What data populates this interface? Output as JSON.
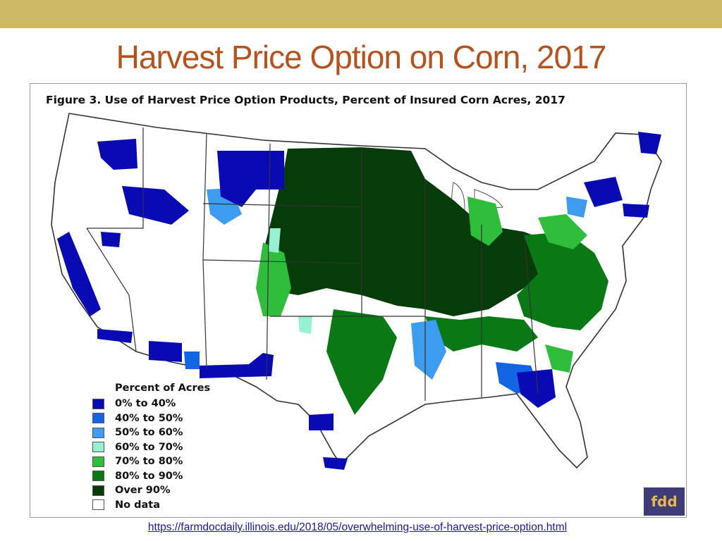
{
  "slide": {
    "title": "Harvest Price Option on Corn, 2017",
    "source_url": "https://farmdocdaily.illinois.edu/2018/05/overwhelming-use-of-harvest-price-option.html"
  },
  "figure": {
    "caption": "Figure 3. Use of Harvest Price Option Products, Percent of Insured Corn Acres, 2017",
    "logo_text": "fdd"
  },
  "legend": {
    "title": "Percent of Acres",
    "items": [
      {
        "label": "0% to 40%",
        "color": "#0a0ab4"
      },
      {
        "label": "40% to 50%",
        "color": "#1464e6"
      },
      {
        "label": "50% to 60%",
        "color": "#3c9cf0"
      },
      {
        "label": "60% to 70%",
        "color": "#96f0d2"
      },
      {
        "label": "70% to 80%",
        "color": "#2ebe3c"
      },
      {
        "label": "80% to 90%",
        "color": "#0a7814"
      },
      {
        "label": "Over 90%",
        "color": "#053c0a"
      },
      {
        "label": "No data",
        "color": "#ffffff"
      }
    ]
  },
  "colors": {
    "band": "#cdb866",
    "title": "#b5531f",
    "link": "#1a1a9c",
    "logo_bg": "#3d3b78",
    "logo_fg": "#e6b84a"
  }
}
